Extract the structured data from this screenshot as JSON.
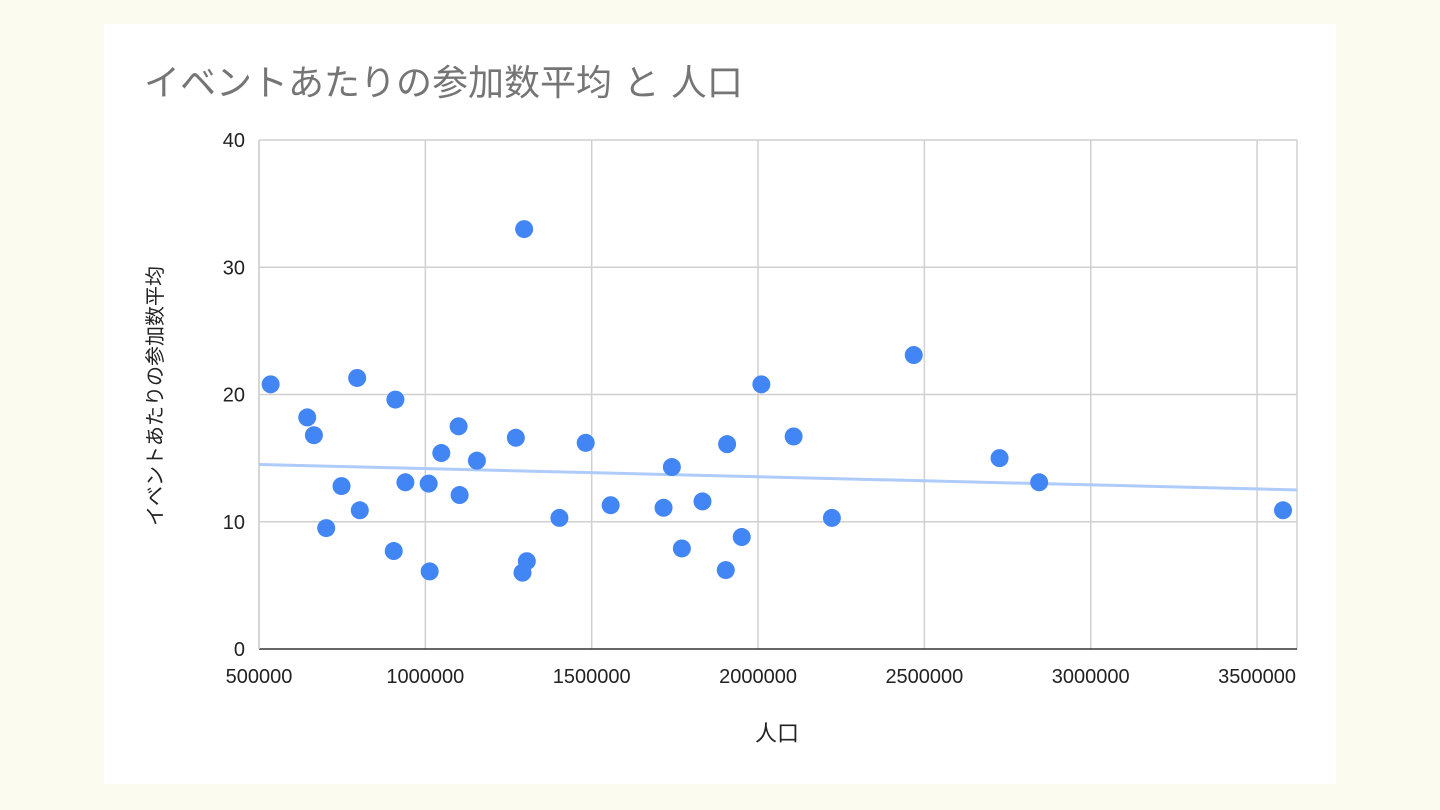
{
  "chart_data": {
    "type": "scatter",
    "title": "イベントあたりの参加数平均 と 人口",
    "xlabel": "人口",
    "ylabel": "イベントあたりの参加数平均",
    "xlim": [
      500000,
      3620000
    ],
    "ylim": [
      0,
      40
    ],
    "x_ticks": [
      "500000",
      "1000000",
      "1500000",
      "2000000",
      "2500000",
      "3000000",
      "3500000"
    ],
    "y_ticks": [
      "0",
      "10",
      "20",
      "30",
      "40"
    ],
    "x_tick_values": [
      500000,
      1000000,
      1500000,
      2000000,
      2500000,
      3000000,
      3500000
    ],
    "y_tick_values": [
      0,
      10,
      20,
      30,
      40
    ],
    "grid": true,
    "point_color": "#4285f4",
    "trendline_color": "#aecbfa",
    "trendline": {
      "x": [
        500000,
        3620000
      ],
      "y": [
        14.5,
        12.5
      ]
    },
    "points": [
      {
        "x": 535000,
        "y": 20.8
      },
      {
        "x": 645000,
        "y": 18.2
      },
      {
        "x": 665000,
        "y": 16.8
      },
      {
        "x": 702000,
        "y": 9.5
      },
      {
        "x": 748000,
        "y": 12.8
      },
      {
        "x": 795000,
        "y": 21.3
      },
      {
        "x": 803000,
        "y": 10.9
      },
      {
        "x": 905000,
        "y": 7.7
      },
      {
        "x": 910000,
        "y": 19.6
      },
      {
        "x": 940000,
        "y": 13.1
      },
      {
        "x": 1010000,
        "y": 13.0
      },
      {
        "x": 1013000,
        "y": 6.1
      },
      {
        "x": 1048000,
        "y": 15.4
      },
      {
        "x": 1100000,
        "y": 17.5
      },
      {
        "x": 1103000,
        "y": 12.1
      },
      {
        "x": 1155000,
        "y": 14.8
      },
      {
        "x": 1272000,
        "y": 16.6
      },
      {
        "x": 1292000,
        "y": 6.0
      },
      {
        "x": 1297000,
        "y": 33.0
      },
      {
        "x": 1305000,
        "y": 6.9
      },
      {
        "x": 1403000,
        "y": 10.3
      },
      {
        "x": 1482000,
        "y": 16.2
      },
      {
        "x": 1557000,
        "y": 11.3
      },
      {
        "x": 1716000,
        "y": 11.1
      },
      {
        "x": 1741000,
        "y": 14.3
      },
      {
        "x": 1771000,
        "y": 7.9
      },
      {
        "x": 1833000,
        "y": 11.6
      },
      {
        "x": 1903000,
        "y": 6.2
      },
      {
        "x": 1907000,
        "y": 16.1
      },
      {
        "x": 1951000,
        "y": 8.8
      },
      {
        "x": 2010000,
        "y": 20.8
      },
      {
        "x": 2107000,
        "y": 16.7
      },
      {
        "x": 2222000,
        "y": 10.3
      },
      {
        "x": 2468000,
        "y": 23.1
      },
      {
        "x": 2726000,
        "y": 15.0
      },
      {
        "x": 2845000,
        "y": 13.1
      },
      {
        "x": 3578000,
        "y": 10.9
      }
    ]
  }
}
